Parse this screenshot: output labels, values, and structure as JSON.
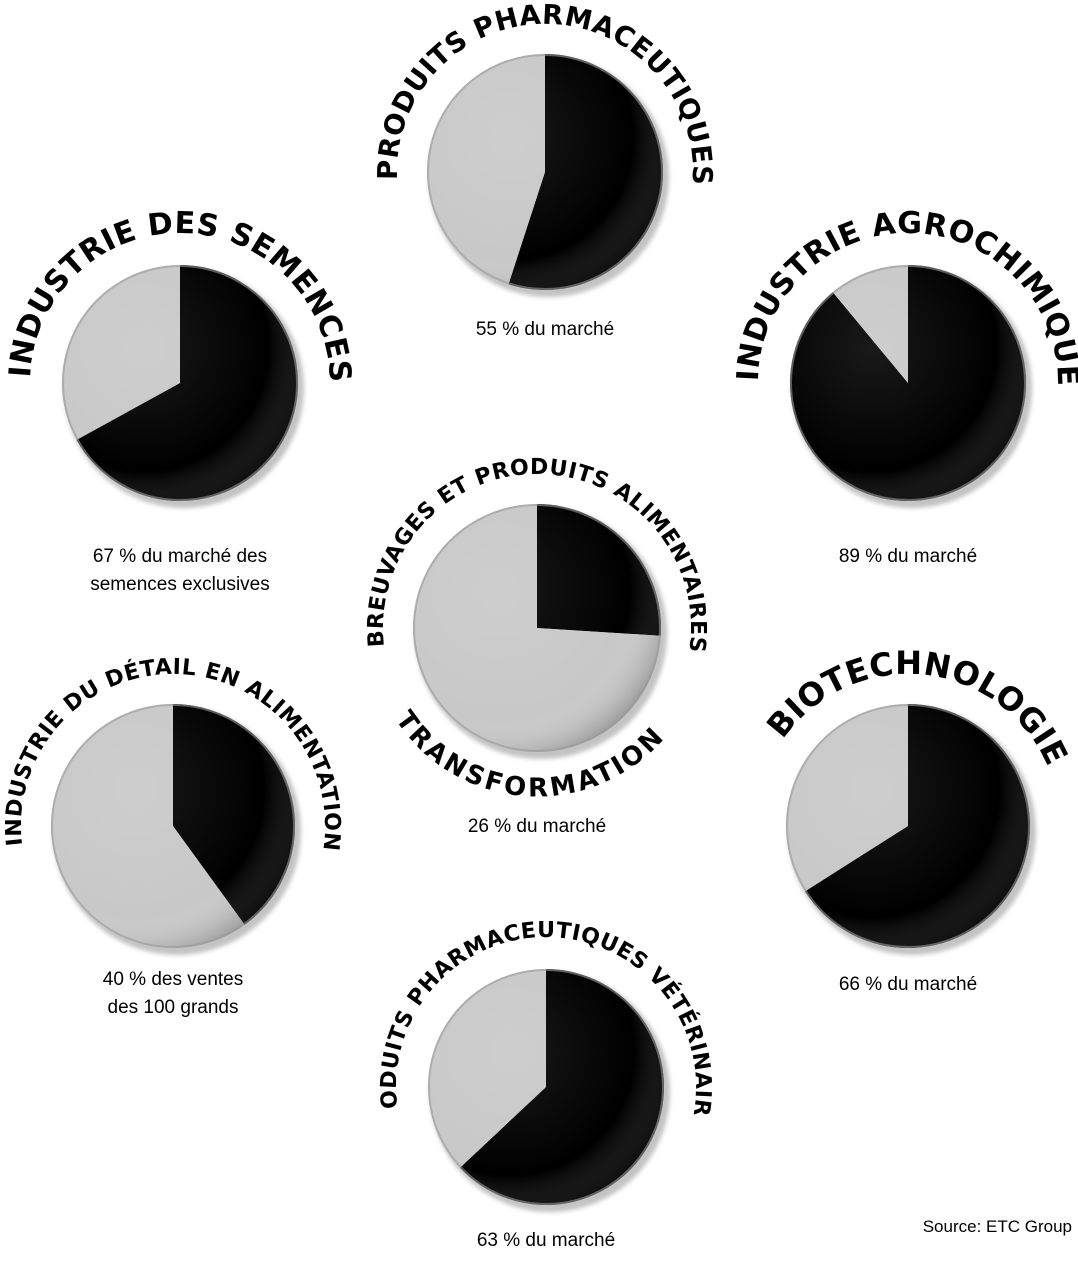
{
  "chart_data": [
    {
      "type": "pie",
      "title": "PRODUITS PHARMACEUTIQUES",
      "values": [
        55,
        45
      ],
      "caption_lines": [
        "55 % du marché"
      ],
      "colors": [
        "#000000",
        "#c8c8c8"
      ]
    },
    {
      "type": "pie",
      "title": "INDUSTRIE DES SEMENCES",
      "values": [
        67,
        33
      ],
      "caption_lines": [
        "67 % du marché des",
        "semences exclusives"
      ],
      "colors": [
        "#000000",
        "#c8c8c8"
      ]
    },
    {
      "type": "pie",
      "title": "INDUSTRIE AGROCHIMIQUE",
      "values": [
        89,
        11
      ],
      "caption_lines": [
        "89 % du marché"
      ],
      "colors": [
        "#000000",
        "#c8c8c8"
      ]
    },
    {
      "type": "pie",
      "title": "BREUVAGES ET PRODUITS ALIMENTAIRES",
      "title_bottom": "TRANSFORMATION",
      "values": [
        26,
        74
      ],
      "caption_lines": [
        "26 % du marché"
      ],
      "colors": [
        "#000000",
        "#c8c8c8"
      ]
    },
    {
      "type": "pie",
      "title": "INDUSTRIE DU DÉTAIL EN ALIMENTATION",
      "values": [
        40,
        60
      ],
      "caption_lines": [
        "40 % des ventes",
        "des 100 grands"
      ],
      "colors": [
        "#000000",
        "#c8c8c8"
      ]
    },
    {
      "type": "pie",
      "title": "BIOTECHNOLOGIE",
      "values": [
        66,
        34
      ],
      "caption_lines": [
        "66 % du marché"
      ],
      "colors": [
        "#000000",
        "#c8c8c8"
      ]
    },
    {
      "type": "pie",
      "title": "PRODUITS PHARMACEUTIQUES VÉTÉRINAIRES",
      "values": [
        63,
        37
      ],
      "caption_lines": [
        "63 % du marché"
      ],
      "colors": [
        "#000000",
        "#c8c8c8"
      ]
    }
  ],
  "source": "Source: ETC Group"
}
